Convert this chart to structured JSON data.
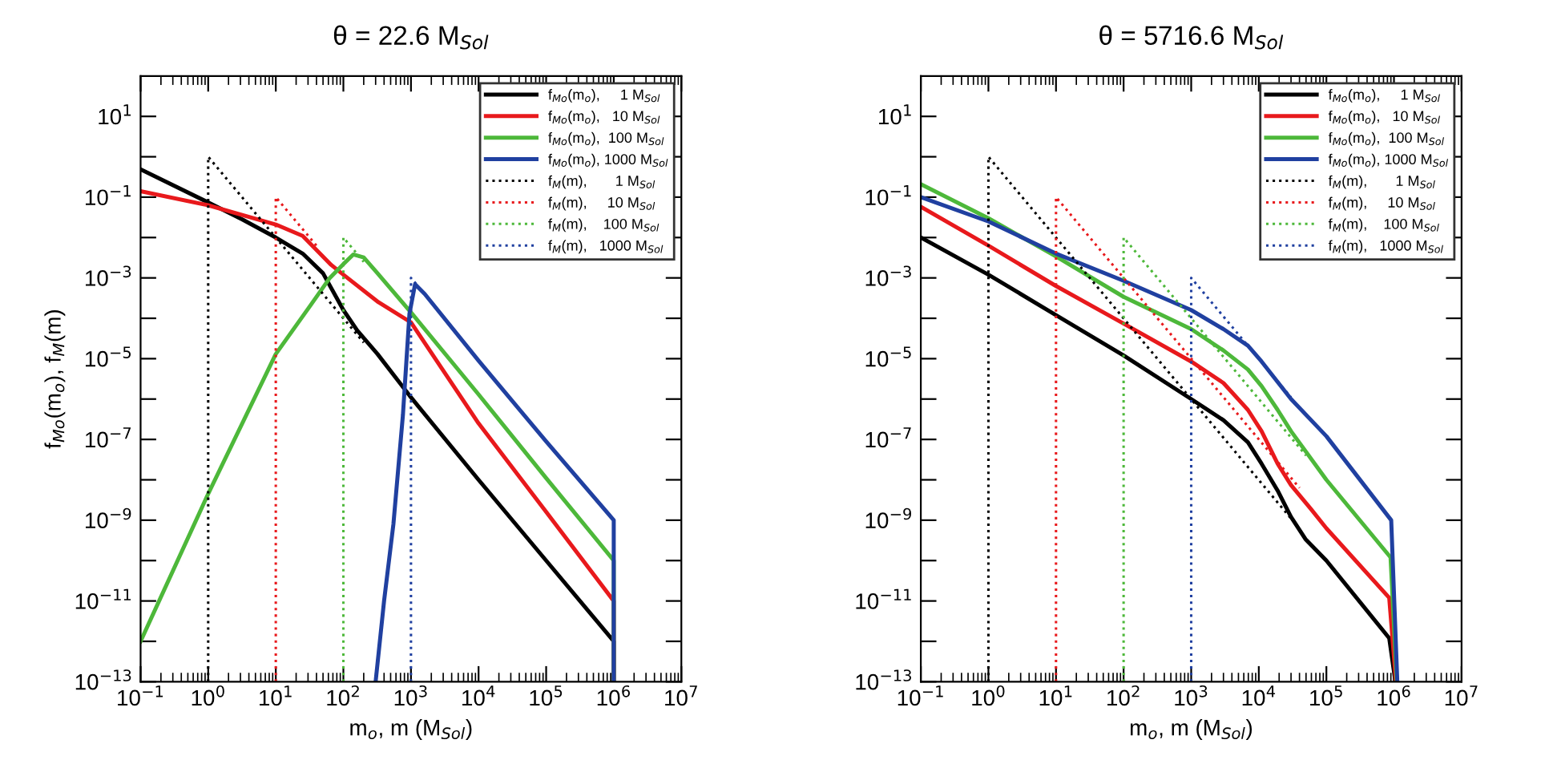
{
  "chart_data": [
    {
      "type": "line",
      "title": "θ = 22.6 M$_{Sol}$",
      "xlabel": "m$_{o}$, m (M$_{Sol}$)",
      "ylabel": "f$_{Mo}$(m$_{o}$), f$_{M}$(m)",
      "log": "xy",
      "legend": "top right",
      "xlim": [
        0.1,
        10000000
      ],
      "ylim": [
        1e-13,
        100
      ],
      "xticks": [
        {
          "value": 0.1,
          "label": "10$^{−1}$"
        },
        {
          "value": 1,
          "label": "10$^{0}$"
        },
        {
          "value": 10,
          "label": "10$^{1}$"
        },
        {
          "value": 100,
          "label": "10$^{2}$"
        },
        {
          "value": 1000,
          "label": "10$^{3}$"
        },
        {
          "value": 10000,
          "label": "10$^{4}$"
        },
        {
          "value": 100000,
          "label": "10$^{5}$"
        },
        {
          "value": 1000000,
          "label": "10$^{6}$"
        },
        {
          "value": 10000000,
          "label": "10$^{7}$"
        }
      ],
      "yticks": [
        {
          "value": 1e-13,
          "label": "10$^{−13}$"
        },
        {
          "value": 1e-12,
          "label": null
        },
        {
          "value": 1e-11,
          "label": "10$^{−11}$"
        },
        {
          "value": 1e-10,
          "label": null
        },
        {
          "value": 1e-09,
          "label": "10$^{−9}$"
        },
        {
          "value": 1e-08,
          "label": null
        },
        {
          "value": 1e-07,
          "label": "10$^{−7}$"
        },
        {
          "value": 1e-06,
          "label": null
        },
        {
          "value": 1e-05,
          "label": "10$^{−5}$"
        },
        {
          "value": 0.0001,
          "label": null
        },
        {
          "value": 0.001,
          "label": "10$^{−3}$"
        },
        {
          "value": 0.01,
          "label": null
        },
        {
          "value": 0.1,
          "label": "10$^{−1}$"
        },
        {
          "value": 1,
          "label": null
        },
        {
          "value": 10,
          "label": "10$^{1}$"
        }
      ],
      "series": [
        {
          "name": "f$_{Mo}$(m$_{o}$),     1 M$_{Sol}$",
          "color": "#000000",
          "line_style": "solid",
          "x": [
            0.1,
            1,
            3.2,
            10,
            25,
            50,
            100,
            160,
            320,
            1000,
            10000,
            100000,
            1000000,
            1000000
          ],
          "values": [
            0.49,
            0.074,
            0.028,
            0.01,
            0.004,
            0.0013,
            0.00016,
            5e-05,
            1.3e-05,
            1.1e-06,
            1e-08,
            1e-10,
            1e-12,
            1e-13
          ]
        },
        {
          "name": "f$_{Mo}$(m$_{o}$),   10 M$_{Sol}$",
          "color": "#e8191c",
          "line_style": "solid",
          "x": [
            0.1,
            1,
            10,
            25,
            66,
            100,
            330,
            1000,
            10000,
            100000,
            1000000,
            1000000
          ],
          "values": [
            0.14,
            0.063,
            0.021,
            0.011,
            0.0021,
            0.0012,
            0.00025,
            7.9e-05,
            2.5e-07,
            1.6e-09,
            1e-11,
            1e-13
          ]
        },
        {
          "name": "f$_{Mo}$(m$_{o}$),  100 M$_{Sol}$",
          "color": "#4db83a",
          "line_style": "solid",
          "x": [
            0.1,
            1,
            10,
            32,
            63,
            100,
            140,
            200,
            320,
            1000,
            10000,
            100000,
            1000000,
            1000000
          ],
          "values": [
            1e-12,
            4.5e-09,
            1.3e-05,
            0.0002,
            0.001,
            0.0022,
            0.0038,
            0.0032,
            0.0013,
            0.00014,
            1.3e-06,
            1.1e-08,
            1e-10,
            1e-13
          ]
        },
        {
          "name": "f$_{Mo}$(m$_{o}$), 1000 M$_{Sol}$",
          "color": "#2040a0",
          "line_style": "solid",
          "x": [
            300,
            400,
            550,
            760,
            950,
            1150,
            1600,
            10000,
            100000,
            1000000,
            1000000
          ],
          "values": [
            1e-13,
            1e-11,
            8e-10,
            4e-07,
            0.00013,
            0.0007,
            0.0004,
            8.9e-06,
            8.9e-08,
            1e-09,
            1e-13
          ]
        },
        {
          "name": "f$_{M}$(m),       1 M$_{Sol}$",
          "color": "#000000",
          "line_style": "dotted",
          "x": [
            1,
            1,
            200
          ],
          "values": [
            1e-13,
            1,
            2.5e-05
          ]
        },
        {
          "name": "f$_{M}$(m),     10 M$_{Sol}$",
          "color": "#e8191c",
          "line_style": "dotted",
          "x": [
            10,
            10,
            40
          ],
          "values": [
            1e-13,
            0.1,
            0.0063
          ]
        },
        {
          "name": "f$_{M}$(m),    100 M$_{Sol}$",
          "color": "#4db83a",
          "line_style": "dotted",
          "x": [
            100,
            100,
            200
          ],
          "values": [
            1e-13,
            0.01,
            0.0025
          ]
        },
        {
          "name": "f$_{M}$(m),   1000 M$_{Sol}$",
          "color": "#2040a0",
          "line_style": "dotted",
          "x": [
            1000,
            1000,
            1200
          ],
          "values": [
            1e-13,
            0.001,
            0.0007
          ]
        }
      ]
    },
    {
      "type": "line",
      "title": "θ = 5716.6 M$_{Sol}$",
      "xlabel": "m$_{o}$, m (M$_{Sol}$)",
      "log": "xy",
      "legend": "top right",
      "xlim": [
        0.1,
        10000000
      ],
      "ylim": [
        1e-13,
        100
      ],
      "xticks": [
        {
          "value": 0.1,
          "label": "10$^{−1}$"
        },
        {
          "value": 1,
          "label": "10$^{0}$"
        },
        {
          "value": 10,
          "label": "10$^{1}$"
        },
        {
          "value": 100,
          "label": "10$^{2}$"
        },
        {
          "value": 1000,
          "label": "10$^{3}$"
        },
        {
          "value": 10000,
          "label": "10$^{4}$"
        },
        {
          "value": 100000,
          "label": "10$^{5}$"
        },
        {
          "value": 1000000,
          "label": "10$^{6}$"
        },
        {
          "value": 10000000,
          "label": "10$^{7}$"
        }
      ],
      "yticks": [
        {
          "value": 1e-13,
          "label": "10$^{−13}$"
        },
        {
          "value": 1e-12,
          "label": null
        },
        {
          "value": 1e-11,
          "label": "10$^{−11}$"
        },
        {
          "value": 1e-10,
          "label": null
        },
        {
          "value": 1e-09,
          "label": "10$^{−9}$"
        },
        {
          "value": 1e-08,
          "label": null
        },
        {
          "value": 1e-07,
          "label": "10$^{−7}$"
        },
        {
          "value": 1e-06,
          "label": null
        },
        {
          "value": 1e-05,
          "label": "10$^{−5}$"
        },
        {
          "value": 0.0001,
          "label": null
        },
        {
          "value": 0.001,
          "label": "10$^{−3}$"
        },
        {
          "value": 0.01,
          "label": null
        },
        {
          "value": 0.1,
          "label": "10$^{−1}$"
        },
        {
          "value": 1,
          "label": null
        },
        {
          "value": 10,
          "label": "10$^{1}$"
        }
      ],
      "series": [
        {
          "name": "f$_{Mo}$(m$_{o}$),     1 M$_{Sol}$",
          "color": "#000000",
          "line_style": "solid",
          "x": [
            0.1,
            1,
            10,
            100,
            1000,
            3000,
            6900,
            11000,
            19000,
            30000,
            49000,
            100000,
            850000,
            1050000
          ],
          "values": [
            0.01,
            0.0012,
            0.00012,
            1.2e-05,
            1e-06,
            3e-07,
            8.5e-08,
            2.5e-08,
            5.4e-09,
            1.2e-09,
            3.4e-10,
            1e-10,
            1.2e-12,
            1e-13
          ]
        },
        {
          "name": "f$_{Mo}$(m$_{o}$),   10 M$_{Sol}$",
          "color": "#e8191c",
          "line_style": "solid",
          "x": [
            0.1,
            1,
            10,
            100,
            1000,
            3000,
            6900,
            11000,
            19000,
            30000,
            59000,
            100000,
            850000,
            1070000
          ],
          "values": [
            0.058,
            0.0063,
            0.00063,
            7.4e-05,
            8.5e-06,
            2.5e-06,
            5.4e-07,
            1.6e-07,
            2.5e-08,
            7.4e-09,
            1.9e-09,
            6.3e-10,
            1.2e-11,
            1e-13
          ]
        },
        {
          "name": "f$_{Mo}$(m$_{o}$),  100 M$_{Sol}$",
          "color": "#4db83a",
          "line_style": "solid",
          "x": [
            0.1,
            1,
            10,
            100,
            1000,
            3000,
            6900,
            11000,
            19000,
            30000,
            100000,
            890000,
            1100000
          ],
          "values": [
            0.21,
            0.03,
            0.0034,
            0.00034,
            5.4e-05,
            1.6e-05,
            5.4e-06,
            2.1e-06,
            5.4e-07,
            1.6e-07,
            1e-08,
            1.2e-10,
            1e-13
          ]
        },
        {
          "name": "f$_{Mo}$(m$_{o}$), 1000 M$_{Sol}$",
          "color": "#2040a0",
          "line_style": "solid",
          "x": [
            0.1,
            1,
            10,
            100,
            1000,
            3000,
            6900,
            11000,
            30000,
            100000,
            910000,
            1120000
          ],
          "values": [
            0.1,
            0.025,
            0.004,
            0.00085,
            0.00016,
            5.4e-05,
            2.1e-05,
            8.5e-06,
            1e-06,
            1.2e-07,
            1e-09,
            1e-13
          ]
        },
        {
          "name": "f$_{M}$(m),       1 M$_{Sol}$",
          "color": "#000000",
          "line_style": "dotted",
          "x": [
            1,
            1,
            30000
          ],
          "values": [
            1e-13,
            1,
            1.1e-09
          ]
        },
        {
          "name": "f$_{M}$(m),     10 M$_{Sol}$",
          "color": "#e8191c",
          "line_style": "dotted",
          "x": [
            10,
            10,
            40000
          ],
          "values": [
            1e-13,
            0.1,
            6.3e-09
          ]
        },
        {
          "name": "f$_{M}$(m),    100 M$_{Sol}$",
          "color": "#4db83a",
          "line_style": "dotted",
          "x": [
            100,
            100,
            50000
          ],
          "values": [
            1e-13,
            0.01,
            4e-08
          ]
        },
        {
          "name": "f$_{M}$(m),   1000 M$_{Sol}$",
          "color": "#2040a0",
          "line_style": "dotted",
          "x": [
            1000,
            1000,
            30000
          ],
          "values": [
            1e-13,
            0.001,
            1.1e-06
          ]
        }
      ]
    }
  ]
}
